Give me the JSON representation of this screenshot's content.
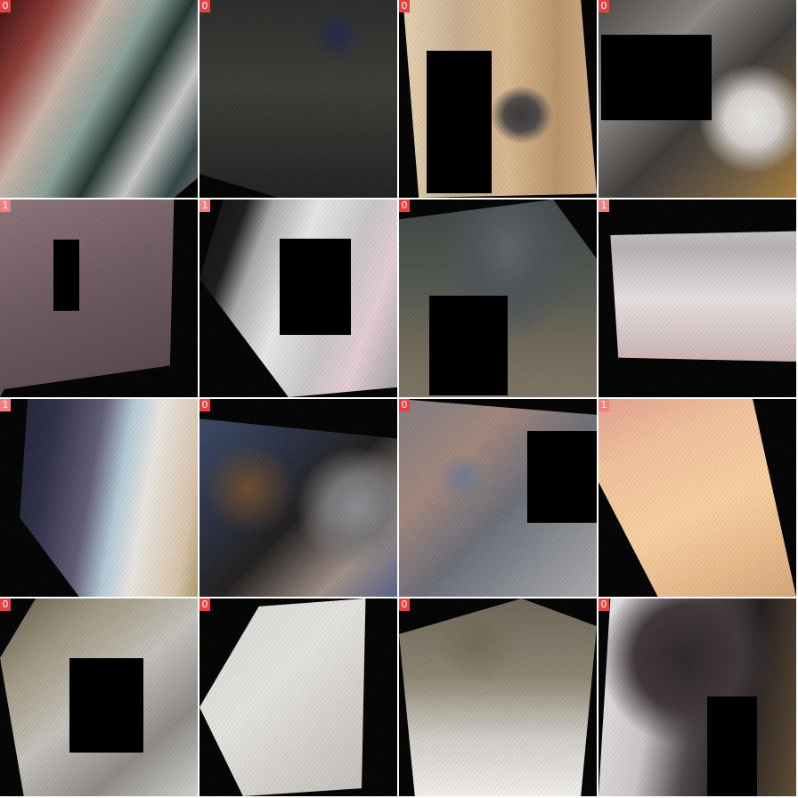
{
  "grid": {
    "tiles": [
      {
        "label": "0",
        "badge_color": "#e84040"
      },
      {
        "label": "0",
        "badge_color": "#e84040"
      },
      {
        "label": "0",
        "badge_color": "#e84040"
      },
      {
        "label": "0",
        "badge_color": "#e84040"
      },
      {
        "label": "1",
        "badge_color": "#f08080"
      },
      {
        "label": "1",
        "badge_color": "#f08080"
      },
      {
        "label": "0",
        "badge_color": "#e84040"
      },
      {
        "label": "1",
        "badge_color": "#f08080"
      },
      {
        "label": "1",
        "badge_color": "#f08080"
      },
      {
        "label": "0",
        "badge_color": "#e84040"
      },
      {
        "label": "0",
        "badge_color": "#e84040"
      },
      {
        "label": "1",
        "badge_color": "#f08080"
      },
      {
        "label": "0",
        "badge_color": "#e84040"
      },
      {
        "label": "0",
        "badge_color": "#e84040"
      },
      {
        "label": "0",
        "badge_color": "#e84040"
      },
      {
        "label": "0",
        "badge_color": "#e84040"
      }
    ]
  }
}
